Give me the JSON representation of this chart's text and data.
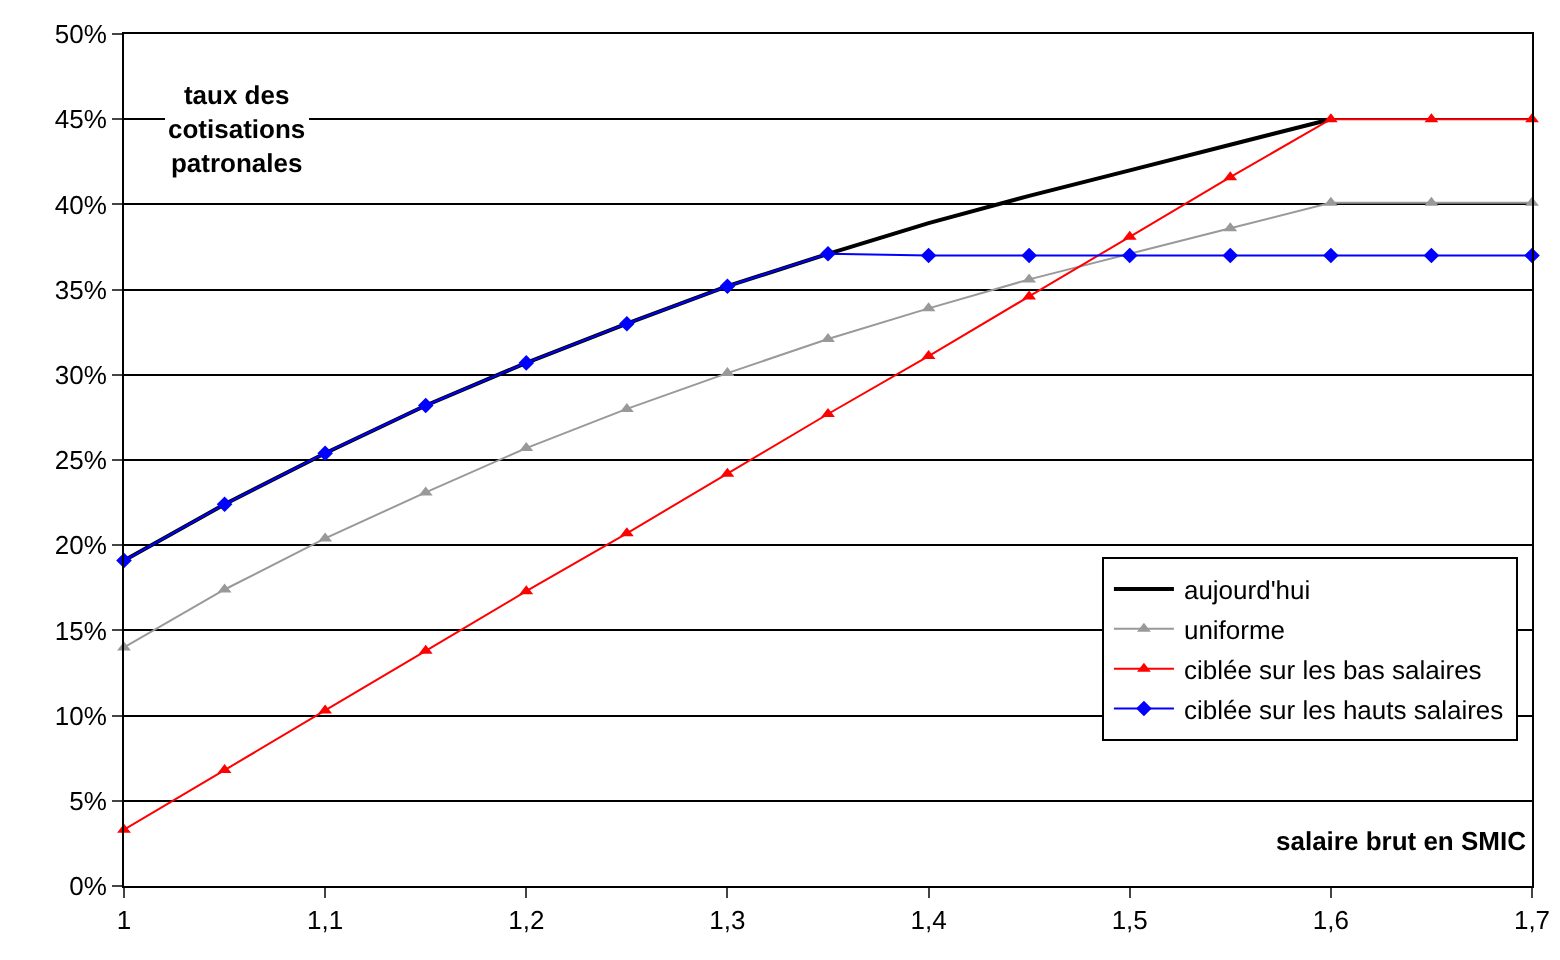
{
  "chart_data": {
    "type": "line",
    "xlabel": "salaire brut en SMIC",
    "ylabel": "taux des cotisations patronales",
    "x": [
      1,
      1.05,
      1.1,
      1.15,
      1.2,
      1.25,
      1.3,
      1.35,
      1.4,
      1.45,
      1.5,
      1.55,
      1.6,
      1.65,
      1.7
    ],
    "series": [
      {
        "name": "aujourd'hui",
        "color": "#000000",
        "marker": "none",
        "values": [
          19.1,
          22.4,
          25.4,
          28.2,
          30.7,
          33.0,
          35.2,
          37.1,
          38.9,
          40.5,
          42.0,
          43.5,
          45,
          null,
          null
        ]
      },
      {
        "name": "uniforme",
        "color": "#999999",
        "marker": "triangle",
        "values": [
          14,
          17.4,
          20.4,
          23.1,
          25.7,
          28.0,
          30.1,
          32.1,
          33.9,
          35.6,
          37.1,
          38.6,
          40.1,
          40.1,
          40.1
        ]
      },
      {
        "name": "ciblée sur les bas salaires",
        "color": "#ff0000",
        "marker": "triangle",
        "values": [
          3.3,
          6.8,
          10.3,
          13.8,
          17.3,
          20.7,
          24.2,
          27.7,
          31.1,
          34.6,
          38.1,
          41.6,
          45,
          45,
          45
        ]
      },
      {
        "name": "ciblée sur les hauts salaires",
        "color": "#0000ff",
        "marker": "diamond",
        "values": [
          19.1,
          22.4,
          25.4,
          28.2,
          30.7,
          33.0,
          35.2,
          37.1,
          37,
          37,
          37,
          37,
          37,
          37,
          37
        ]
      }
    ],
    "xlim": [
      1,
      1.7
    ],
    "xticks": [
      1,
      {
        "value": 1.1,
        "label": "1,1"
      },
      {
        "value": 1.2,
        "label": "1,2"
      },
      {
        "value": 1.3,
        "label": "1,3"
      },
      {
        "value": 1.4,
        "label": "1,4"
      },
      {
        "value": 1.5,
        "label": "1,5"
      },
      {
        "value": 1.6,
        "label": "1,6"
      },
      {
        "value": 1.7,
        "label": "1,7"
      }
    ],
    "ylim": [
      0,
      50
    ],
    "yticks": [
      {
        "value": 0,
        "label": "0%"
      },
      {
        "value": 5,
        "label": "5%"
      },
      {
        "value": 10,
        "label": "10%"
      },
      {
        "value": 15,
        "label": "15%"
      },
      {
        "value": 20,
        "label": "20%"
      },
      {
        "value": 25,
        "label": "25%"
      },
      {
        "value": 30,
        "label": "30%"
      },
      {
        "value": 35,
        "label": "35%"
      },
      {
        "value": 40,
        "label": "40%"
      },
      {
        "value": 45,
        "label": "45%"
      },
      {
        "value": 50,
        "label": "50%"
      }
    ],
    "grid": "y",
    "legend": "bottom right",
    "line_style": "solid"
  }
}
